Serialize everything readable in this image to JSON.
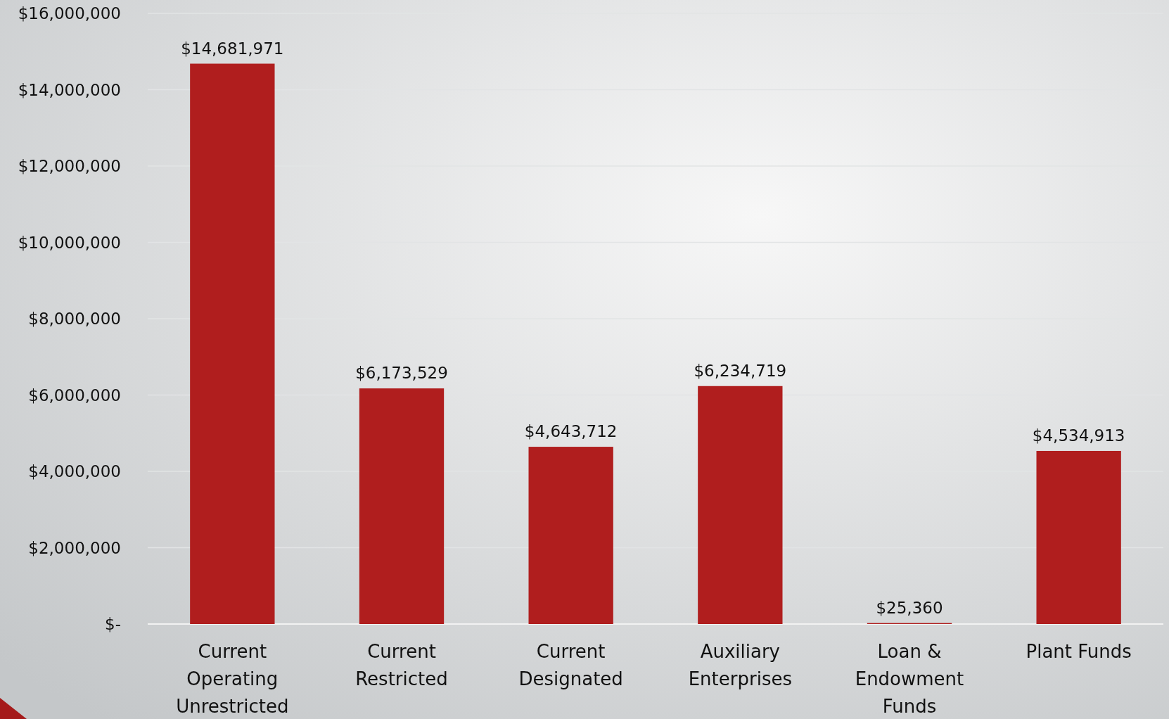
{
  "chart_data": {
    "type": "bar",
    "categories": [
      "Current Operating Unrestricted",
      "Current Restricted",
      "Current Designated",
      "Auxiliary Enterprises",
      "Loan & Endowment Funds",
      "Plant Funds"
    ],
    "values": [
      14681971,
      6173529,
      4643712,
      6234719,
      25360,
      4534913
    ],
    "value_labels": [
      "$14,681,971",
      "$6,173,529",
      "$4,643,712",
      "$6,234,719",
      "$25,360",
      "$4,534,913"
    ],
    "color": "#b01e1e",
    "ylim": [
      0,
      16000000
    ],
    "yticks": [
      {
        "value": 0,
        "label": "$-"
      },
      {
        "value": 2000000,
        "label": "$2,000,000"
      },
      {
        "value": 4000000,
        "label": "$4,000,000"
      },
      {
        "value": 6000000,
        "label": "$6,000,000"
      },
      {
        "value": 8000000,
        "label": "$8,000,000"
      },
      {
        "value": 10000000,
        "label": "$10,000,000"
      },
      {
        "value": 12000000,
        "label": "$12,000,000"
      },
      {
        "value": 14000000,
        "label": "$14,000,000"
      },
      {
        "value": 16000000,
        "label": "$16,000,000"
      }
    ],
    "grid": "y"
  }
}
